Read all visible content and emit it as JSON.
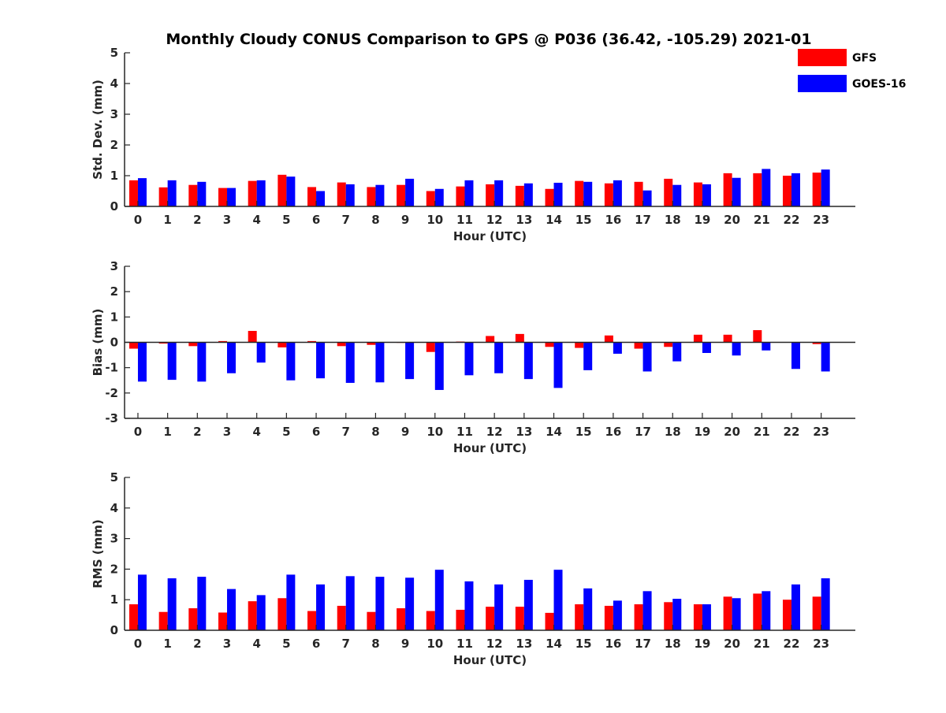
{
  "title": "Monthly Cloudy CONUS Comparison to GPS @ P036 (36.42, -105.29) 2021-01",
  "colors": {
    "gfs": "#ff0000",
    "goes": "#0000ff",
    "axis": "#262626"
  },
  "legend": {
    "placement": "top-right",
    "entries": [
      "GFS",
      "GOES-16"
    ]
  },
  "chart_data": [
    {
      "type": "bar",
      "name": "std-dev",
      "xlabel": "Hour (UTC)",
      "ylabel": "Std. Dev. (mm)",
      "ylim": [
        0,
        5
      ],
      "yticks": [
        0,
        1,
        2,
        3,
        4,
        5
      ],
      "categories": [
        "0",
        "1",
        "2",
        "3",
        "4",
        "5",
        "6",
        "7",
        "8",
        "9",
        "10",
        "11",
        "12",
        "13",
        "14",
        "15",
        "16",
        "17",
        "18",
        "19",
        "20",
        "21",
        "22",
        "23"
      ],
      "series": [
        {
          "name": "GFS",
          "values": [
            0.85,
            0.62,
            0.7,
            0.6,
            0.83,
            1.03,
            0.63,
            0.78,
            0.63,
            0.7,
            0.5,
            0.65,
            0.72,
            0.67,
            0.57,
            0.83,
            0.75,
            0.8,
            0.9,
            0.78,
            1.08,
            1.08,
            1.0,
            1.1
          ]
        },
        {
          "name": "GOES-16",
          "values": [
            0.92,
            0.85,
            0.8,
            0.6,
            0.85,
            0.97,
            0.5,
            0.72,
            0.7,
            0.9,
            0.57,
            0.85,
            0.85,
            0.75,
            0.77,
            0.8,
            0.85,
            0.52,
            0.7,
            0.72,
            0.93,
            1.22,
            1.08,
            1.2
          ]
        }
      ]
    },
    {
      "type": "bar",
      "name": "bias",
      "xlabel": "Hour (UTC)",
      "ylabel": "Bias (mm)",
      "ylim": [
        -3,
        3
      ],
      "yticks": [
        -3,
        -2,
        -1,
        0,
        1,
        2,
        3
      ],
      "zero_line": true,
      "categories": [
        "0",
        "1",
        "2",
        "3",
        "4",
        "5",
        "6",
        "7",
        "8",
        "9",
        "10",
        "11",
        "12",
        "13",
        "14",
        "15",
        "16",
        "17",
        "18",
        "19",
        "20",
        "21",
        "22",
        "23"
      ],
      "series": [
        {
          "name": "GFS",
          "values": [
            -0.25,
            -0.05,
            -0.15,
            0.05,
            0.45,
            -0.2,
            0.05,
            -0.15,
            -0.1,
            -0.02,
            -0.38,
            0.03,
            0.25,
            0.33,
            -0.18,
            -0.22,
            0.27,
            -0.25,
            -0.18,
            0.3,
            0.3,
            0.48,
            0.0,
            -0.07
          ]
        },
        {
          "name": "GOES-16",
          "values": [
            -1.55,
            -1.48,
            -1.55,
            -1.22,
            -0.8,
            -1.5,
            -1.42,
            -1.6,
            -1.58,
            -1.45,
            -1.88,
            -1.3,
            -1.22,
            -1.45,
            -1.8,
            -1.1,
            -0.45,
            -1.15,
            -0.75,
            -0.42,
            -0.52,
            -0.32,
            -1.05,
            -1.15
          ]
        }
      ]
    },
    {
      "type": "bar",
      "name": "rms",
      "xlabel": "Hour (UTC)",
      "ylabel": "RMS (mm)",
      "ylim": [
        0,
        5
      ],
      "yticks": [
        0,
        1,
        2,
        3,
        4,
        5
      ],
      "categories": [
        "0",
        "1",
        "2",
        "3",
        "4",
        "5",
        "6",
        "7",
        "8",
        "9",
        "10",
        "11",
        "12",
        "13",
        "14",
        "15",
        "16",
        "17",
        "18",
        "19",
        "20",
        "21",
        "22",
        "23"
      ],
      "series": [
        {
          "name": "GFS",
          "values": [
            0.85,
            0.6,
            0.72,
            0.58,
            0.95,
            1.05,
            0.63,
            0.8,
            0.6,
            0.72,
            0.63,
            0.67,
            0.77,
            0.77,
            0.57,
            0.85,
            0.8,
            0.85,
            0.92,
            0.85,
            1.1,
            1.2,
            1.0,
            1.1
          ]
        },
        {
          "name": "GOES-16",
          "values": [
            1.82,
            1.7,
            1.75,
            1.35,
            1.15,
            1.82,
            1.5,
            1.77,
            1.75,
            1.72,
            1.98,
            1.6,
            1.5,
            1.65,
            1.98,
            1.37,
            0.97,
            1.28,
            1.03,
            0.85,
            1.05,
            1.28,
            1.5,
            1.7
          ]
        }
      ]
    }
  ]
}
